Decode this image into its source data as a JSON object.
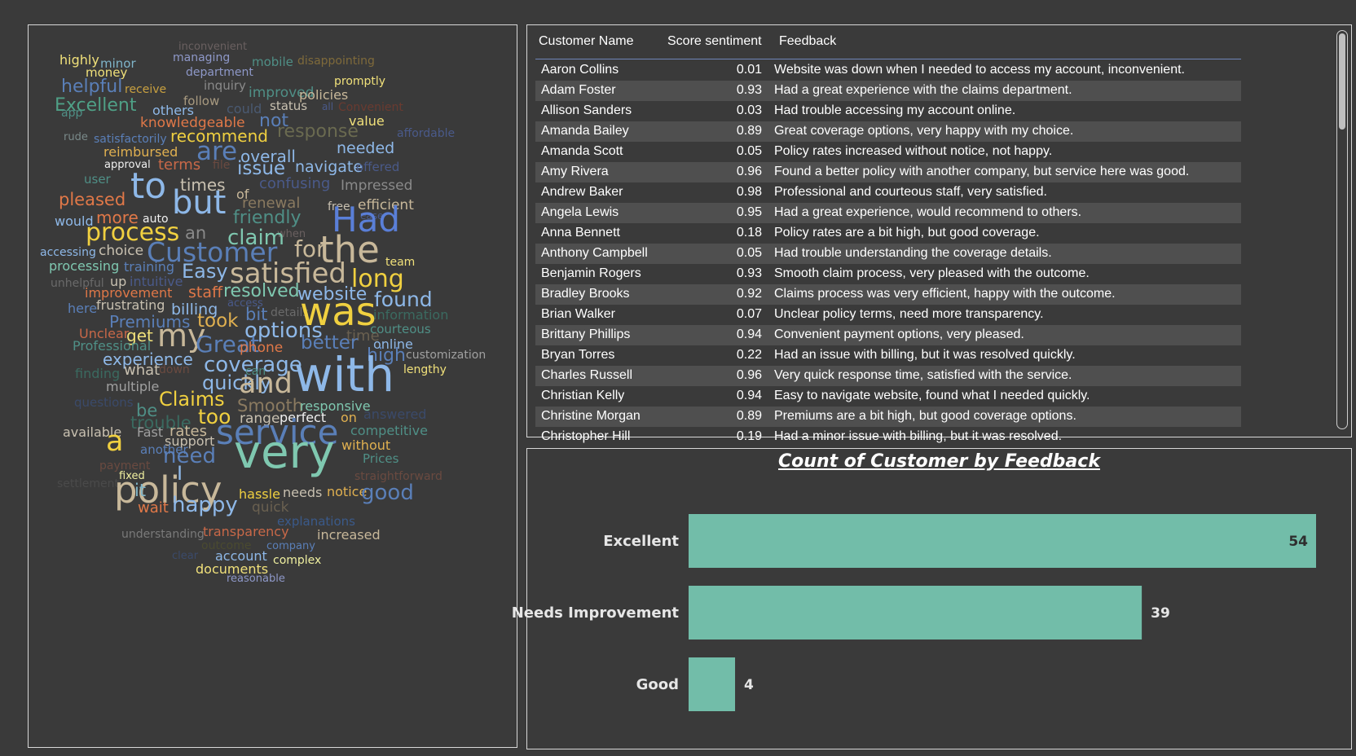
{
  "word_cloud": {
    "words": [
      {
        "text": "inconvenient",
        "color": "#6a6060"
      },
      {
        "text": "managing",
        "color": "#8e98c8"
      },
      {
        "text": "highly",
        "color": "#f0e07a"
      },
      {
        "text": "minor",
        "color": "#7fb4c8"
      },
      {
        "text": "mobile",
        "color": "#4f8f86"
      },
      {
        "text": "disappointing",
        "color": "#7f6a3a"
      },
      {
        "text": "department",
        "color": "#8e98c8"
      },
      {
        "text": "money",
        "color": "#f0e07a"
      },
      {
        "text": "helpful",
        "color": "#5a7fb8"
      },
      {
        "text": "receive",
        "color": "#c8a040"
      },
      {
        "text": "inquiry",
        "color": "#8a8a8a"
      },
      {
        "text": "promptly",
        "color": "#f0e07a"
      },
      {
        "text": "improved",
        "color": "#4f8f86"
      },
      {
        "text": "policies",
        "color": "#c8b89a"
      },
      {
        "text": "Excellent",
        "color": "#4fa086"
      },
      {
        "text": "follow",
        "color": "#a89a80"
      },
      {
        "text": "app",
        "color": "#4f8f86"
      },
      {
        "text": "others",
        "color": "#8eb8e8"
      },
      {
        "text": "could",
        "color": "#4a5a72"
      },
      {
        "text": "status",
        "color": "#c8c0b0"
      },
      {
        "text": "all",
        "color": "#4a5a8a"
      },
      {
        "text": "Convenient",
        "color": "#6a3a30"
      },
      {
        "text": "knowledgeable",
        "color": "#e07848"
      },
      {
        "text": "not",
        "color": "#5a7fb8"
      },
      {
        "text": "value",
        "color": "#f0e07a"
      },
      {
        "text": "rude",
        "color": "#7a8a8a"
      },
      {
        "text": "satisfactorily",
        "color": "#5a7fb8"
      },
      {
        "text": "recommend",
        "color": "#f0d040"
      },
      {
        "text": "response",
        "color": "#6a6a50"
      },
      {
        "text": "affordable",
        "color": "#4a5a8a"
      },
      {
        "text": "reimbursed",
        "color": "#e0b050"
      },
      {
        "text": "are",
        "color": "#5a7fb8"
      },
      {
        "text": "overall",
        "color": "#8eb8e8"
      },
      {
        "text": "needed",
        "color": "#8eb8e8"
      },
      {
        "text": "approval",
        "color": "#f0f0f0"
      },
      {
        "text": "terms",
        "color": "#c86848"
      },
      {
        "text": "file",
        "color": "#6a4a40"
      },
      {
        "text": "issue",
        "color": "#8eb8e8"
      },
      {
        "text": "navigate",
        "color": "#8eb8e8"
      },
      {
        "text": "offered",
        "color": "#4a5a8a"
      },
      {
        "text": "user",
        "color": "#4f8f86"
      },
      {
        "text": "to",
        "color": "#8eb8e8"
      },
      {
        "text": "times",
        "color": "#c8c0b0"
      },
      {
        "text": "of",
        "color": "#c8b89a"
      },
      {
        "text": "confusing",
        "color": "#4a5a8a"
      },
      {
        "text": "Impressed",
        "color": "#8a8a8a"
      },
      {
        "text": "pleased",
        "color": "#e07848"
      },
      {
        "text": "but",
        "color": "#8eb8e8"
      },
      {
        "text": "renewal",
        "color": "#8a7a60"
      },
      {
        "text": "free",
        "color": "#c8c0b0"
      },
      {
        "text": "efficient",
        "color": "#c8b89a"
      },
      {
        "text": "ease",
        "color": "#4a5a8a"
      },
      {
        "text": "would",
        "color": "#8eb8e8"
      },
      {
        "text": "more",
        "color": "#e07848"
      },
      {
        "text": "auto",
        "color": "#f0f0f0"
      },
      {
        "text": "friendly",
        "color": "#4f8f86"
      },
      {
        "text": "Had",
        "color": "#5a7fd8"
      },
      {
        "text": "process",
        "color": "#f0d040"
      },
      {
        "text": "an",
        "color": "#8a8a8a"
      },
      {
        "text": "when",
        "color": "#6a6060"
      },
      {
        "text": "claim",
        "color": "#7fc8b0"
      },
      {
        "text": "choice",
        "color": "#c8c0b0"
      },
      {
        "text": "accessing",
        "color": "#8eb8e8"
      },
      {
        "text": "Customer",
        "color": "#5a7fb8"
      },
      {
        "text": "for",
        "color": "#c8b89a"
      },
      {
        "text": "the",
        "color": "#c8b89a"
      },
      {
        "text": "team",
        "color": "#f0e07a"
      },
      {
        "text": "processing",
        "color": "#7fc8b0"
      },
      {
        "text": "training",
        "color": "#5a7fb8"
      },
      {
        "text": "Easy",
        "color": "#8eb8e8"
      },
      {
        "text": "satisfied",
        "color": "#c8b89a"
      },
      {
        "text": "long",
        "color": "#f0d040"
      },
      {
        "text": "unhelpful",
        "color": "#6a6a6a"
      },
      {
        "text": "up",
        "color": "#c8c0b0"
      },
      {
        "text": "intuitive",
        "color": "#4a5a8a"
      },
      {
        "text": "improvement",
        "color": "#e07848"
      },
      {
        "text": "staff",
        "color": "#e07848"
      },
      {
        "text": "resolved",
        "color": "#7fc8b0"
      },
      {
        "text": "website",
        "color": "#8eb8e8"
      },
      {
        "text": "found",
        "color": "#8eb8e8"
      },
      {
        "text": "access",
        "color": "#4a5a8a"
      },
      {
        "text": "here",
        "color": "#5a7fb8"
      },
      {
        "text": "frustrating",
        "color": "#c8c0b0"
      },
      {
        "text": "billing",
        "color": "#8eb8e8"
      },
      {
        "text": "bit",
        "color": "#5a7fb8"
      },
      {
        "text": "details",
        "color": "#6a6a6a"
      },
      {
        "text": "was",
        "color": "#f0d040"
      },
      {
        "text": "information",
        "color": "#3a6a60"
      },
      {
        "text": "Premiums",
        "color": "#5a7fb8"
      },
      {
        "text": "took",
        "color": "#e0b050"
      },
      {
        "text": "Unclear",
        "color": "#c86848"
      },
      {
        "text": "get",
        "color": "#f0e07a"
      },
      {
        "text": "my",
        "color": "#c8b89a"
      },
      {
        "text": "options",
        "color": "#8eb8e8"
      },
      {
        "text": "time",
        "color": "#6a6050"
      },
      {
        "text": "courteous",
        "color": "#4f8f86"
      },
      {
        "text": "Professional",
        "color": "#4f8f86"
      },
      {
        "text": "Great",
        "color": "#5a7fb8"
      },
      {
        "text": "phone",
        "color": "#e07848"
      },
      {
        "text": "better",
        "color": "#5a7fb8"
      },
      {
        "text": "online",
        "color": "#8eb8e8"
      },
      {
        "text": "customization",
        "color": "#a0a0a0"
      },
      {
        "text": "experience",
        "color": "#8eb8e8"
      },
      {
        "text": "coverage",
        "color": "#8eb8e8"
      },
      {
        "text": "high",
        "color": "#5a7fb8"
      },
      {
        "text": "finding",
        "color": "#3a6a60"
      },
      {
        "text": "what",
        "color": "#c8c0b0"
      },
      {
        "text": "down",
        "color": "#6a4a40"
      },
      {
        "text": "can",
        "color": "#4f8f86"
      },
      {
        "text": "with",
        "color": "#8eb8e8"
      },
      {
        "text": "lengthy",
        "color": "#f0e07a"
      },
      {
        "text": "multiple",
        "color": "#a0a0a0"
      },
      {
        "text": "quickly",
        "color": "#8eb8e8"
      },
      {
        "text": "and",
        "color": "#c8b89a"
      },
      {
        "text": "questions",
        "color": "#3a4a6a"
      },
      {
        "text": "Claims",
        "color": "#f0d040"
      },
      {
        "text": "Smooth",
        "color": "#8a7a60"
      },
      {
        "text": "responsive",
        "color": "#7fc8b0"
      },
      {
        "text": "be",
        "color": "#4f8f86"
      },
      {
        "text": "too",
        "color": "#f0d040"
      },
      {
        "text": "range",
        "color": "#c8c0b0"
      },
      {
        "text": "perfect",
        "color": "#f0f0f0"
      },
      {
        "text": "on",
        "color": "#e0b050"
      },
      {
        "text": "answered",
        "color": "#3a4a6a"
      },
      {
        "text": "trouble",
        "color": "#3a6a60"
      },
      {
        "text": "competitive",
        "color": "#4f8f86"
      },
      {
        "text": "available",
        "color": "#c8c0b0"
      },
      {
        "text": "Fast",
        "color": "#a0a0a0"
      },
      {
        "text": "rates",
        "color": "#c8b89a"
      },
      {
        "text": "service",
        "color": "#5a7fb8"
      },
      {
        "text": "support",
        "color": "#c8c0b0"
      },
      {
        "text": "a",
        "color": "#f0d040"
      },
      {
        "text": "another",
        "color": "#5a7fb8"
      },
      {
        "text": "need",
        "color": "#5a7fb8"
      },
      {
        "text": "very",
        "color": "#7fc8b0"
      },
      {
        "text": "without",
        "color": "#e0b050"
      },
      {
        "text": "payment",
        "color": "#6a4a40"
      },
      {
        "text": "Prices",
        "color": "#4f8f86"
      },
      {
        "text": "fixed",
        "color": "#f0f0a0"
      },
      {
        "text": "I",
        "color": "#8eb8e8"
      },
      {
        "text": "straightforward",
        "color": "#6a4a40"
      },
      {
        "text": "settlement",
        "color": "#4a4a4a"
      },
      {
        "text": "policy",
        "color": "#c8b89a"
      },
      {
        "text": "notice",
        "color": "#e0b050"
      },
      {
        "text": "it",
        "color": "#7fb4c8"
      },
      {
        "text": "hassle",
        "color": "#f0d040"
      },
      {
        "text": "needs",
        "color": "#c8c0b0"
      },
      {
        "text": "good",
        "color": "#5a7fb8"
      },
      {
        "text": "wait",
        "color": "#e07848"
      },
      {
        "text": "happy",
        "color": "#8eb8e8"
      },
      {
        "text": "quick",
        "color": "#6a6050"
      },
      {
        "text": "explanations",
        "color": "#3a5a8a"
      },
      {
        "text": "understanding",
        "color": "#7a7a7a"
      },
      {
        "text": "transparency",
        "color": "#c86848"
      },
      {
        "text": "increased",
        "color": "#c8b89a"
      },
      {
        "text": "outcome",
        "color": "#4a4a30"
      },
      {
        "text": "company",
        "color": "#5a7fb8"
      },
      {
        "text": "clear",
        "color": "#3a4a6a"
      },
      {
        "text": "account",
        "color": "#8eb8e8"
      },
      {
        "text": "complex",
        "color": "#f0f0a0"
      },
      {
        "text": "documents",
        "color": "#f0e07a"
      },
      {
        "text": "reasonable",
        "color": "#8e98c8"
      }
    ]
  },
  "table": {
    "columns": [
      "Customer Name",
      "Score sentiment",
      "Feedback"
    ],
    "rows": [
      {
        "name": "Aaron Collins",
        "score": "0.01",
        "feedback": "Website was down when I needed to access my account, inconvenient."
      },
      {
        "name": "Adam Foster",
        "score": "0.93",
        "feedback": "Had a great experience with the claims department."
      },
      {
        "name": "Allison Sanders",
        "score": "0.03",
        "feedback": "Had trouble accessing my account online."
      },
      {
        "name": "Amanda Bailey",
        "score": "0.89",
        "feedback": "Great coverage options, very happy with my choice."
      },
      {
        "name": "Amanda Scott",
        "score": "0.05",
        "feedback": "Policy rates increased without notice, not happy."
      },
      {
        "name": "Amy Rivera",
        "score": "0.96",
        "feedback": "Found a better policy with another company, but service here was good."
      },
      {
        "name": "Andrew Baker",
        "score": "0.98",
        "feedback": "Professional and courteous staff, very satisfied."
      },
      {
        "name": "Angela Lewis",
        "score": "0.95",
        "feedback": "Had a great experience, would recommend to others."
      },
      {
        "name": "Anna Bennett",
        "score": "0.18",
        "feedback": "Policy rates are a bit high, but good coverage."
      },
      {
        "name": "Anthony Campbell",
        "score": "0.05",
        "feedback": "Had trouble understanding the coverage details."
      },
      {
        "name": "Benjamin Rogers",
        "score": "0.93",
        "feedback": "Smooth claim process, very pleased with the outcome."
      },
      {
        "name": "Bradley Brooks",
        "score": "0.92",
        "feedback": "Claims process was very efficient, happy with the outcome."
      },
      {
        "name": "Brian Walker",
        "score": "0.07",
        "feedback": "Unclear policy terms, need more transparency."
      },
      {
        "name": "Brittany Phillips",
        "score": "0.94",
        "feedback": "Convenient payment options, very pleased."
      },
      {
        "name": "Bryan Torres",
        "score": "0.22",
        "feedback": "Had an issue with billing, but it was resolved quickly."
      },
      {
        "name": "Charles Russell",
        "score": "0.96",
        "feedback": "Very quick response time, satisfied with the service."
      },
      {
        "name": "Christian Kelly",
        "score": "0.94",
        "feedback": "Easy to navigate website, found what I needed quickly."
      },
      {
        "name": "Christine Morgan",
        "score": "0.89",
        "feedback": "Premiums are a bit high, but good coverage options."
      },
      {
        "name": "Christopher Hill",
        "score": "0.19",
        "feedback": "Had a minor issue with billing, but it was resolved."
      }
    ]
  },
  "chart_data": {
    "type": "bar",
    "orientation": "horizontal",
    "title": "Count of Customer by Feedback",
    "categories": [
      "Excellent",
      "Needs Improvement",
      "Good"
    ],
    "values": [
      54,
      39,
      4
    ],
    "bar_color": "#72bda9",
    "data_labels": true,
    "grid": false,
    "xlim": [
      0,
      54
    ]
  }
}
